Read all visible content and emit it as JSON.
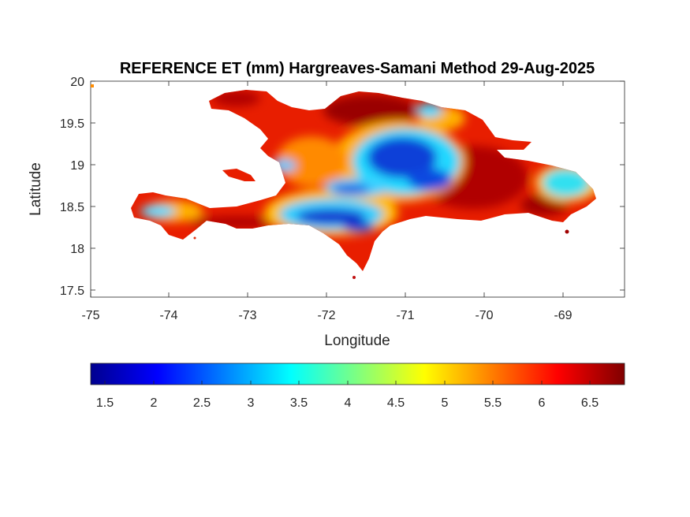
{
  "title": "REFERENCE ET (mm) Hargreaves-Samani Method  29-Aug-2025",
  "xlabel": "Longitude",
  "ylabel": "Latitude",
  "x_ticks": [
    "-75",
    "-74",
    "-73",
    "-72",
    "-71",
    "-70",
    "-69"
  ],
  "y_ticks": [
    "20",
    "19.5",
    "19",
    "18.5",
    "18",
    "17.5"
  ],
  "x_range": [
    -75,
    -68.2
  ],
  "y_range": [
    17.4,
    20
  ],
  "colorbar": {
    "colormap": "jet",
    "range": [
      1.35,
      6.85
    ],
    "ticks": [
      "1.5",
      "2",
      "2.5",
      "3",
      "3.5",
      "4",
      "4.5",
      "5",
      "5.5",
      "6",
      "6.5"
    ]
  },
  "colors": {
    "high": "#a00000",
    "mid_high": "#ff2a00",
    "mid": "#ffb000",
    "low": "#00d8ff",
    "lowest": "#1040e0"
  }
}
